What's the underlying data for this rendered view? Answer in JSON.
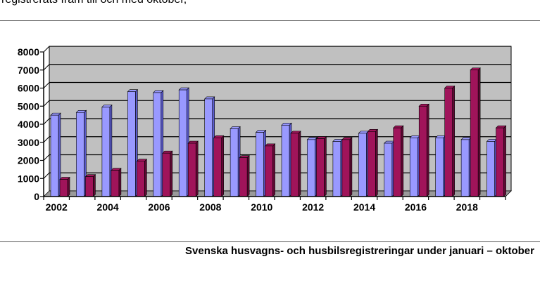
{
  "header": {
    "partial_text": "registrerats fram till och med oktober,"
  },
  "caption": "Svenska husvagns- och husbilsregistreringar under januari – oktober",
  "colors": {
    "husvagn_face": "#9999ff",
    "husvagn_side": "#5a5acc",
    "husbil_face": "#a0145a",
    "husbil_side": "#600934",
    "plot_bg": "#c0c0c0"
  },
  "chart_data": {
    "type": "bar",
    "x": [
      2002,
      2003,
      2004,
      2005,
      2006,
      2007,
      2008,
      2009,
      2010,
      2011,
      2012,
      2013,
      2014,
      2015,
      2016,
      2017,
      2018,
      2019
    ],
    "x_tick_labels": [
      "2002",
      "2004",
      "2006",
      "2008",
      "2010",
      "2012",
      "2014",
      "2016",
      "2018"
    ],
    "series": [
      {
        "values": [
          4500,
          4650,
          4950,
          5800,
          5750,
          5900,
          5400,
          3750,
          3550,
          3950,
          3150,
          3050,
          3500,
          2950,
          3250,
          3250,
          3150,
          3050
        ]
      },
      {
        "values": [
          950,
          1100,
          1450,
          1950,
          2400,
          2950,
          3250,
          2150,
          2800,
          3500,
          3200,
          3150,
          3600,
          3800,
          5000,
          6000,
          7000,
          3800
        ]
      }
    ],
    "ylim": [
      0,
      8000
    ],
    "y_ticks": [
      0,
      1000,
      2000,
      3000,
      4000,
      5000,
      6000,
      7000,
      8000
    ],
    "grid": true,
    "legend": "none",
    "xlabel": "",
    "ylabel": ""
  }
}
